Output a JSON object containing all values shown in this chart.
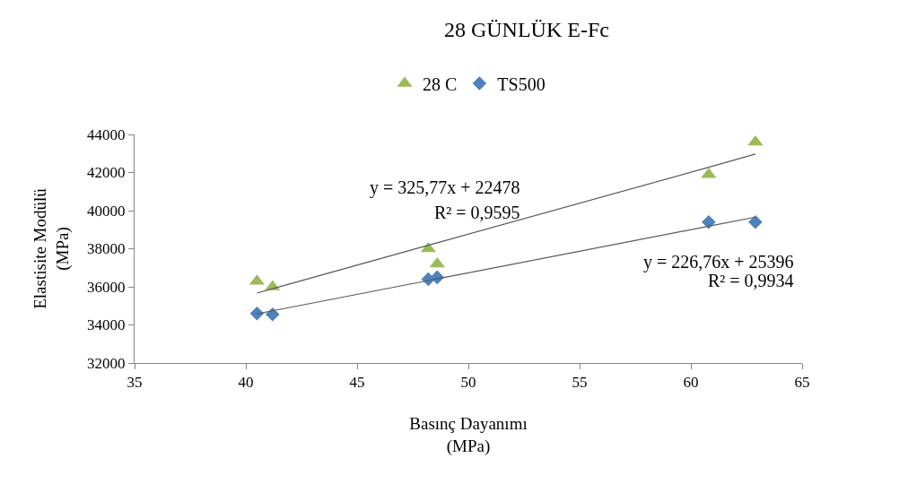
{
  "chart_data": {
    "type": "scatter",
    "title": "28 GÜNLÜK E-Fc",
    "xlabel": "Basınç Dayanımı\n(MPa)",
    "ylabel": "Elastisite Modülü\n(MPa)",
    "x": [
      40.5,
      41.2,
      48.2,
      48.6,
      60.8,
      62.9
    ],
    "series": [
      {
        "name": "28 C",
        "color": "#9bbb59",
        "marker": "triangle",
        "values": [
          36300,
          36000,
          38000,
          37200,
          41900,
          43600
        ]
      },
      {
        "name": "TS500",
        "color": "#4f81bd",
        "marker": "diamond",
        "values": [
          34600,
          34550,
          36400,
          36500,
          39400,
          39400
        ]
      },
      {
        "type": "line",
        "color": "#595959",
        "values": [
          35670,
          35900,
          38180,
          38310,
          42280,
          42970
        ]
      },
      {
        "type": "line",
        "color": "#595959",
        "values": [
          34580,
          34740,
          36330,
          36420,
          39180,
          39660
        ]
      }
    ],
    "annotations": [
      "y = 325,77x + 22478",
      "R² = 0,9595",
      "y = 226,76x + 25396",
      "R² = 0,9934"
    ],
    "xlim": [
      35,
      65
    ],
    "xticks": [
      35,
      40,
      45,
      50,
      55,
      60,
      65
    ],
    "ylim": [
      32000,
      44000
    ],
    "yticks": [
      32000,
      34000,
      36000,
      38000,
      40000,
      42000,
      44000
    ],
    "grid": false,
    "legend": "top"
  }
}
